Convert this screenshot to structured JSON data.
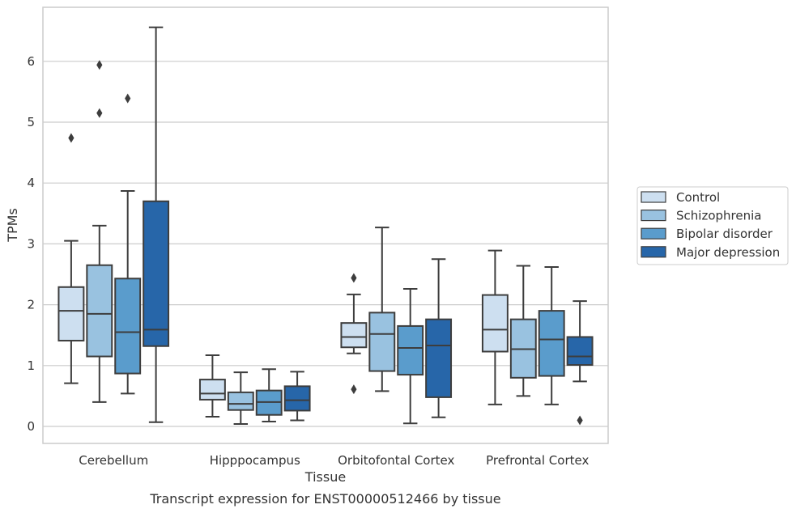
{
  "caption": "Transcript expression for ENST00000512466 by tissue",
  "chart_data": {
    "type": "box",
    "title": "",
    "xlabel": "Tissue",
    "ylabel": "TPMs",
    "ylim": [
      -0.27,
      6.9
    ],
    "yticks": [
      0,
      1,
      2,
      3,
      4,
      5,
      6
    ],
    "grid": "horizontal",
    "legend_position": "right",
    "categories": [
      "Cerebellum",
      "Hipppocampus",
      "Orbitofontal Cortex",
      "Prefrontal Cortex"
    ],
    "series": [
      {
        "name": "Control",
        "color": "#cddff0",
        "boxes": [
          {
            "whislo": 0.71,
            "q1": 1.41,
            "med": 1.9,
            "q3": 2.29,
            "whishi": 3.05,
            "fliers": [
              4.74
            ]
          },
          {
            "whislo": 0.16,
            "q1": 0.44,
            "med": 0.54,
            "q3": 0.77,
            "whishi": 1.17,
            "fliers": []
          },
          {
            "whislo": 1.2,
            "q1": 1.3,
            "med": 1.47,
            "q3": 1.7,
            "whishi": 2.17,
            "fliers": [
              2.44,
              0.61
            ]
          },
          {
            "whislo": 0.36,
            "q1": 1.23,
            "med": 1.59,
            "q3": 2.16,
            "whishi": 2.89,
            "fliers": []
          }
        ]
      },
      {
        "name": "Schizophrenia",
        "color": "#99c2e0",
        "boxes": [
          {
            "whislo": 0.4,
            "q1": 1.15,
            "med": 1.85,
            "q3": 2.65,
            "whishi": 3.3,
            "fliers": [
              5.94,
              5.15
            ]
          },
          {
            "whislo": 0.04,
            "q1": 0.27,
            "med": 0.37,
            "q3": 0.56,
            "whishi": 0.89,
            "fliers": []
          },
          {
            "whislo": 0.58,
            "q1": 0.91,
            "med": 1.52,
            "q3": 1.87,
            "whishi": 3.27,
            "fliers": []
          },
          {
            "whislo": 0.5,
            "q1": 0.8,
            "med": 1.27,
            "q3": 1.76,
            "whishi": 2.64,
            "fliers": []
          }
        ]
      },
      {
        "name": "Bipolar disorder",
        "color": "#5a9ccc",
        "boxes": [
          {
            "whislo": 0.54,
            "q1": 0.87,
            "med": 1.55,
            "q3": 2.43,
            "whishi": 3.87,
            "fliers": [
              5.39
            ]
          },
          {
            "whislo": 0.08,
            "q1": 0.19,
            "med": 0.4,
            "q3": 0.59,
            "whishi": 0.94,
            "fliers": []
          },
          {
            "whislo": 0.05,
            "q1": 0.85,
            "med": 1.29,
            "q3": 1.65,
            "whishi": 2.26,
            "fliers": []
          },
          {
            "whislo": 0.36,
            "q1": 0.83,
            "med": 1.43,
            "q3": 1.9,
            "whishi": 2.62,
            "fliers": []
          }
        ]
      },
      {
        "name": "Major depression",
        "color": "#2766a9",
        "boxes": [
          {
            "whislo": 0.07,
            "q1": 1.32,
            "med": 1.59,
            "q3": 3.7,
            "whishi": 6.56,
            "fliers": []
          },
          {
            "whislo": 0.1,
            "q1": 0.26,
            "med": 0.43,
            "q3": 0.66,
            "whishi": 0.9,
            "fliers": []
          },
          {
            "whislo": 0.15,
            "q1": 0.48,
            "med": 1.33,
            "q3": 1.76,
            "whishi": 2.75,
            "fliers": []
          },
          {
            "whislo": 0.74,
            "q1": 1.01,
            "med": 1.15,
            "q3": 1.47,
            "whishi": 2.06,
            "fliers": [
              0.1
            ]
          }
        ]
      }
    ]
  }
}
